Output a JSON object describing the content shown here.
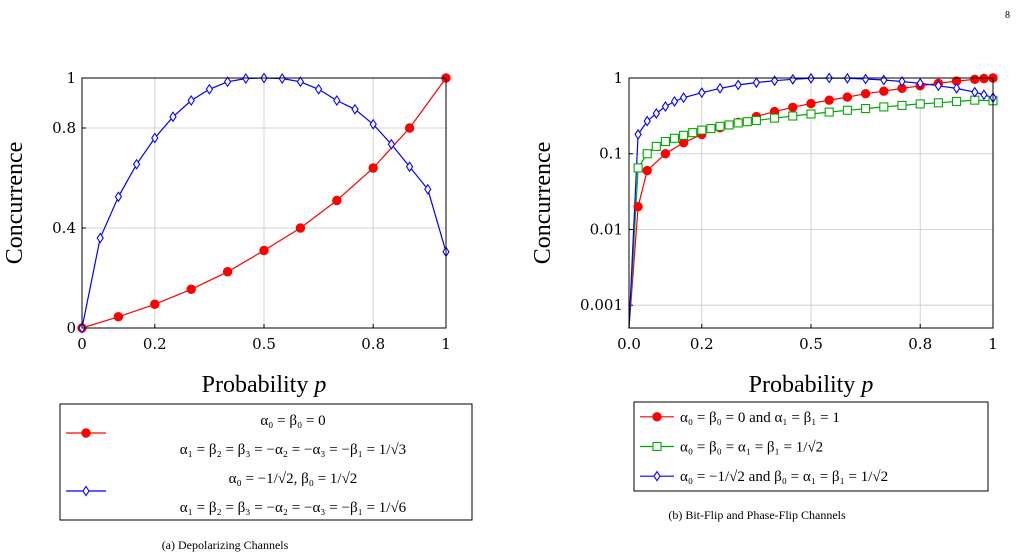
{
  "page_number": "8",
  "chart_data": [
    {
      "type": "line",
      "caption": "(a) Depolarizing Channels",
      "xlabel_text": "Probability ",
      "xlabel_var": "p",
      "ylabel": "Concurrence",
      "xlim": [
        0,
        1
      ],
      "ylim": [
        0,
        1
      ],
      "xscale": "linear",
      "yscale": "linear",
      "xticks": [
        0,
        0.2,
        0.5,
        0.8,
        1
      ],
      "xtick_labels": [
        "0",
        "0.2",
        "0.5",
        "0.8",
        "1"
      ],
      "yticks": [
        0,
        0.4,
        0.8,
        1
      ],
      "ytick_labels": [
        "0",
        "0.4",
        "0.8",
        "1"
      ],
      "grid": true,
      "legend_position": "below",
      "series": [
        {
          "color": "#ff0000",
          "marker": "circle-filled",
          "legend_lines": [
            "α₀ = β₀ = 0",
            "α₁ = β₂ = β₃ = −α₂ = −α₃ = −β₁ = 1/√3"
          ],
          "x": [
            0,
            0.1,
            0.2,
            0.3,
            0.4,
            0.5,
            0.6,
            0.7,
            0.8,
            0.9,
            1.0
          ],
          "y": [
            0,
            0.045,
            0.095,
            0.155,
            0.225,
            0.31,
            0.4,
            0.51,
            0.64,
            0.8,
            1.0
          ]
        },
        {
          "color": "#0000ff",
          "marker": "diamond-open",
          "legend_lines": [
            "α₀ = −1/√2, β₀ = 1/√2",
            "α₁ = β₂ = β₃ = −α₂ = −α₃ = −β₁ = 1/√6"
          ],
          "x": [
            0,
            0.05,
            0.1,
            0.15,
            0.2,
            0.25,
            0.3,
            0.35,
            0.4,
            0.45,
            0.5,
            0.55,
            0.6,
            0.65,
            0.7,
            0.75,
            0.8,
            0.85,
            0.9,
            0.95,
            1.0
          ],
          "y": [
            0,
            0.36,
            0.525,
            0.655,
            0.76,
            0.845,
            0.91,
            0.955,
            0.985,
            0.998,
            1.0,
            0.998,
            0.985,
            0.955,
            0.91,
            0.875,
            0.815,
            0.735,
            0.645,
            0.555,
            0.305
          ]
        }
      ]
    },
    {
      "type": "line",
      "caption": "(b) Bit-Flip and Phase-Flip Channels",
      "xlabel_text": "Probability ",
      "xlabel_var": "p",
      "ylabel": "Concurrence",
      "xlim": [
        0,
        1
      ],
      "ylim": [
        0.0005,
        1
      ],
      "xscale": "linear",
      "yscale": "log",
      "xticks": [
        0,
        0.2,
        0.5,
        0.8,
        1
      ],
      "xtick_labels": [
        "0.0",
        "0.2",
        "0.5",
        "0.8",
        "1"
      ],
      "yticks": [
        0.001,
        0.01,
        0.1,
        1
      ],
      "ytick_labels": [
        "0.001",
        "0.01",
        "0.1",
        "1"
      ],
      "grid": true,
      "legend_position": "below",
      "series": [
        {
          "color": "#ff0000",
          "marker": "circle-filled",
          "legend_lines": [
            "α₀ = β₀ = 0 and α₁ = β₁ = 1"
          ],
          "x": [
            0.0,
            0.025,
            0.05,
            0.1,
            0.15,
            0.2,
            0.25,
            0.3,
            0.35,
            0.4,
            0.45,
            0.5,
            0.55,
            0.6,
            0.65,
            0.7,
            0.75,
            0.8,
            0.85,
            0.9,
            0.95,
            0.975,
            1.0
          ],
          "y": [
            0.0005,
            0.02,
            0.06,
            0.1,
            0.14,
            0.18,
            0.22,
            0.26,
            0.31,
            0.36,
            0.41,
            0.46,
            0.51,
            0.56,
            0.62,
            0.67,
            0.73,
            0.79,
            0.85,
            0.91,
            0.96,
            0.985,
            1.0
          ]
        },
        {
          "color": "#00aa00",
          "marker": "square-open",
          "legend_lines": [
            "α₀ = β₀ = α₁ = β₁ = 1/√2"
          ],
          "x": [
            0.0,
            0.025,
            0.05,
            0.075,
            0.1,
            0.125,
            0.15,
            0.175,
            0.2,
            0.225,
            0.25,
            0.275,
            0.3,
            0.325,
            0.35,
            0.4,
            0.45,
            0.5,
            0.55,
            0.6,
            0.65,
            0.7,
            0.75,
            0.8,
            0.85,
            0.9,
            0.95,
            1.0
          ],
          "y": [
            0.0005,
            0.065,
            0.1,
            0.125,
            0.145,
            0.16,
            0.175,
            0.19,
            0.205,
            0.215,
            0.23,
            0.24,
            0.255,
            0.265,
            0.275,
            0.295,
            0.315,
            0.335,
            0.355,
            0.375,
            0.395,
            0.415,
            0.435,
            0.455,
            0.47,
            0.49,
            0.51,
            0.5
          ]
        },
        {
          "color": "#0000ff",
          "marker": "diamond-open",
          "legend_lines": [
            "α₀ = −1/√2 and β₀ = α₁ = β₁ = 1/√2"
          ],
          "x": [
            0.0,
            0.025,
            0.05,
            0.075,
            0.1,
            0.125,
            0.15,
            0.2,
            0.25,
            0.3,
            0.35,
            0.4,
            0.45,
            0.5,
            0.55,
            0.6,
            0.65,
            0.7,
            0.75,
            0.8,
            0.85,
            0.9,
            0.95,
            0.975,
            1.0
          ],
          "y": [
            0.0005,
            0.18,
            0.27,
            0.34,
            0.42,
            0.49,
            0.55,
            0.64,
            0.73,
            0.81,
            0.87,
            0.92,
            0.96,
            0.99,
            1.0,
            0.99,
            0.97,
            0.94,
            0.9,
            0.85,
            0.79,
            0.73,
            0.65,
            0.6,
            0.55
          ]
        }
      ]
    }
  ]
}
